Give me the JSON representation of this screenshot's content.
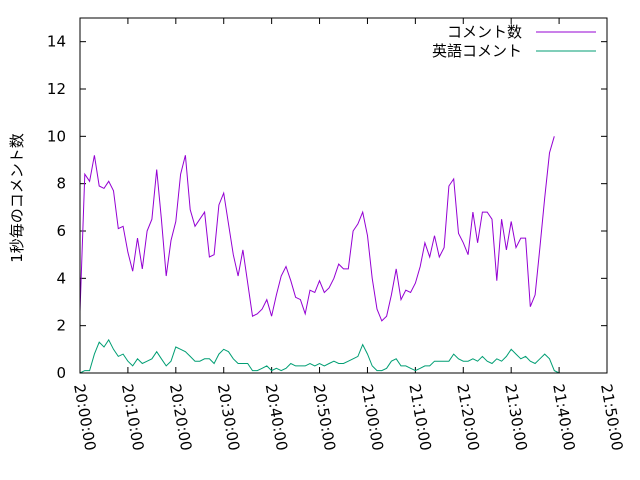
{
  "chart_data": {
    "type": "line",
    "title": "",
    "xlabel": "",
    "ylabel": "1秒毎のコメント数",
    "xlim": [
      "20:00:00",
      "21:50:00"
    ],
    "ylim": [
      0,
      15
    ],
    "xticks": [
      "20:00:00",
      "20:10:00",
      "20:20:00",
      "20:30:00",
      "20:40:00",
      "20:50:00",
      "21:00:00",
      "21:10:00",
      "21:20:00",
      "21:30:00",
      "21:40:00",
      "21:50:00"
    ],
    "yticks": [
      0,
      2,
      4,
      6,
      8,
      10,
      12,
      14
    ],
    "grid": false,
    "legend_position": "top-right",
    "x": [
      "20:00:00",
      "20:01:00",
      "20:02:00",
      "20:03:00",
      "20:04:00",
      "20:05:00",
      "20:06:00",
      "20:07:00",
      "20:08:00",
      "20:09:00",
      "20:10:00",
      "20:11:00",
      "20:12:00",
      "20:13:00",
      "20:14:00",
      "20:15:00",
      "20:16:00",
      "20:17:00",
      "20:18:00",
      "20:19:00",
      "20:20:00",
      "20:21:00",
      "20:22:00",
      "20:23:00",
      "20:24:00",
      "20:25:00",
      "20:26:00",
      "20:27:00",
      "20:28:00",
      "20:29:00",
      "20:30:00",
      "20:31:00",
      "20:32:00",
      "20:33:00",
      "20:34:00",
      "20:35:00",
      "20:36:00",
      "20:37:00",
      "20:38:00",
      "20:39:00",
      "20:40:00",
      "20:41:00",
      "20:42:00",
      "20:43:00",
      "20:44:00",
      "20:45:00",
      "20:46:00",
      "20:47:00",
      "20:48:00",
      "20:49:00",
      "20:50:00",
      "20:51:00",
      "20:52:00",
      "20:53:00",
      "20:54:00",
      "20:55:00",
      "20:56:00",
      "20:57:00",
      "20:58:00",
      "20:59:00",
      "21:00:00",
      "21:01:00",
      "21:02:00",
      "21:03:00",
      "21:04:00",
      "21:05:00",
      "21:06:00",
      "21:07:00",
      "21:08:00",
      "21:09:00",
      "21:10:00",
      "21:11:00",
      "21:12:00",
      "21:13:00",
      "21:14:00",
      "21:15:00",
      "21:16:00",
      "21:17:00",
      "21:18:00",
      "21:19:00",
      "21:20:00",
      "21:21:00",
      "21:22:00",
      "21:23:00",
      "21:24:00",
      "21:25:00",
      "21:26:00",
      "21:27:00",
      "21:28:00",
      "21:29:00",
      "21:30:00",
      "21:31:00",
      "21:32:00",
      "21:33:00",
      "21:34:00",
      "21:35:00",
      "21:36:00",
      "21:37:00",
      "21:38:00",
      "21:39:00",
      "21:40:00",
      "21:41:00",
      "21:42:00"
    ],
    "series": [
      {
        "name": "コメント数",
        "color": "#9400d3",
        "values": [
          2.6,
          8.4,
          8.1,
          9.2,
          7.9,
          7.8,
          8.1,
          7.7,
          6.1,
          6.2,
          5.1,
          4.3,
          5.7,
          4.4,
          6.0,
          6.5,
          8.6,
          6.5,
          4.1,
          5.6,
          6.4,
          8.4,
          9.2,
          6.9,
          6.2,
          6.5,
          6.8,
          4.9,
          5.0,
          7.1,
          7.6,
          6.3,
          5.0,
          4.1,
          5.2,
          3.8,
          2.4,
          2.5,
          2.7,
          3.1,
          2.4,
          3.3,
          4.1,
          4.5,
          3.9,
          3.2,
          3.1,
          2.5,
          3.5,
          3.4,
          3.9,
          3.4,
          3.6,
          4.0,
          4.6,
          4.4,
          4.4,
          6.0,
          6.3,
          6.8,
          5.8,
          4.0,
          2.7,
          2.2,
          2.4,
          3.3,
          4.4,
          3.1,
          3.5,
          3.4,
          3.8,
          4.5,
          5.5,
          4.9,
          5.8,
          4.9,
          5.3,
          7.9,
          8.2,
          5.9,
          5.5,
          5.0,
          6.8,
          5.5,
          6.8,
          6.8,
          6.5,
          3.9,
          6.5,
          5.2,
          6.4,
          5.3,
          5.7,
          5.7,
          2.8,
          3.3,
          5.3,
          7.4,
          9.3,
          10.0,
          null,
          null,
          null
        ]
      },
      {
        "name": "英語コメント",
        "color": "#009e73",
        "values": [
          0.0,
          0.1,
          0.1,
          0.8,
          1.3,
          1.1,
          1.4,
          1.0,
          0.7,
          0.8,
          0.5,
          0.3,
          0.6,
          0.4,
          0.5,
          0.6,
          0.9,
          0.6,
          0.3,
          0.5,
          1.1,
          1.0,
          0.9,
          0.7,
          0.5,
          0.5,
          0.6,
          0.6,
          0.4,
          0.8,
          1.0,
          0.9,
          0.6,
          0.4,
          0.4,
          0.4,
          0.1,
          0.1,
          0.2,
          0.3,
          0.1,
          0.2,
          0.1,
          0.2,
          0.4,
          0.3,
          0.3,
          0.3,
          0.4,
          0.3,
          0.4,
          0.3,
          0.4,
          0.5,
          0.4,
          0.4,
          0.5,
          0.6,
          0.7,
          1.2,
          0.8,
          0.3,
          0.1,
          0.1,
          0.2,
          0.5,
          0.6,
          0.3,
          0.3,
          0.2,
          0.1,
          0.2,
          0.3,
          0.3,
          0.5,
          0.5,
          0.5,
          0.5,
          0.8,
          0.6,
          0.5,
          0.5,
          0.6,
          0.5,
          0.7,
          0.5,
          0.4,
          0.6,
          0.5,
          0.7,
          1.0,
          0.8,
          0.6,
          0.7,
          0.5,
          0.4,
          0.6,
          0.8,
          0.6,
          0.1,
          0.0,
          0.0,
          0.0
        ]
      }
    ]
  }
}
